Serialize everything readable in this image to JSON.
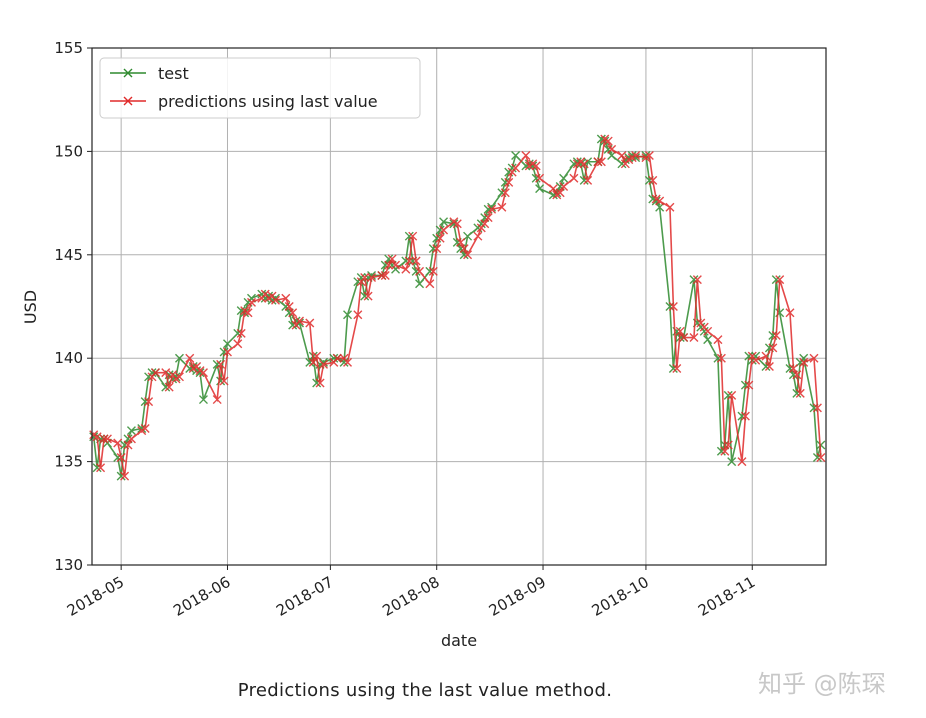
{
  "chart_data": {
    "type": "line",
    "title": "",
    "xlabel": "date",
    "ylabel": "USD",
    "ylim": [
      130,
      155
    ],
    "xlim": [
      "2018-04-23",
      "2018-11-22"
    ],
    "grid": true,
    "legend_position": "top-left",
    "yticks": [
      "130",
      "135",
      "140",
      "145",
      "150",
      "155"
    ],
    "xticks": [
      {
        "date": "2018-05-01",
        "label": "2018-05"
      },
      {
        "date": "2018-06-01",
        "label": "2018-06"
      },
      {
        "date": "2018-07-01",
        "label": "2018-07"
      },
      {
        "date": "2018-08-01",
        "label": "2018-08"
      },
      {
        "date": "2018-09-01",
        "label": "2018-09"
      },
      {
        "date": "2018-10-01",
        "label": "2018-10"
      },
      {
        "date": "2018-11-01",
        "label": "2018-11"
      }
    ],
    "x": [
      "2018-04-23",
      "2018-04-24",
      "2018-04-25",
      "2018-04-26",
      "2018-04-27",
      "2018-04-30",
      "2018-05-01",
      "2018-05-02",
      "2018-05-03",
      "2018-05-04",
      "2018-05-07",
      "2018-05-08",
      "2018-05-09",
      "2018-05-10",
      "2018-05-11",
      "2018-05-14",
      "2018-05-15",
      "2018-05-16",
      "2018-05-17",
      "2018-05-18",
      "2018-05-21",
      "2018-05-22",
      "2018-05-23",
      "2018-05-24",
      "2018-05-25",
      "2018-05-29",
      "2018-05-30",
      "2018-05-31",
      "2018-06-01",
      "2018-06-04",
      "2018-06-05",
      "2018-06-06",
      "2018-06-07",
      "2018-06-08",
      "2018-06-11",
      "2018-06-12",
      "2018-06-13",
      "2018-06-14",
      "2018-06-15",
      "2018-06-18",
      "2018-06-19",
      "2018-06-20",
      "2018-06-21",
      "2018-06-22",
      "2018-06-25",
      "2018-06-26",
      "2018-06-27",
      "2018-06-28",
      "2018-06-29",
      "2018-07-02",
      "2018-07-03",
      "2018-07-05",
      "2018-07-06",
      "2018-07-09",
      "2018-07-10",
      "2018-07-11",
      "2018-07-12",
      "2018-07-13",
      "2018-07-16",
      "2018-07-17",
      "2018-07-18",
      "2018-07-19",
      "2018-07-20",
      "2018-07-23",
      "2018-07-24",
      "2018-07-25",
      "2018-07-26",
      "2018-07-27",
      "2018-07-30",
      "2018-07-31",
      "2018-08-01",
      "2018-08-02",
      "2018-08-03",
      "2018-08-06",
      "2018-08-07",
      "2018-08-08",
      "2018-08-09",
      "2018-08-10",
      "2018-08-13",
      "2018-08-14",
      "2018-08-15",
      "2018-08-16",
      "2018-08-17",
      "2018-08-20",
      "2018-08-21",
      "2018-08-22",
      "2018-08-23",
      "2018-08-24",
      "2018-08-27",
      "2018-08-28",
      "2018-08-29",
      "2018-08-30",
      "2018-08-31",
      "2018-09-04",
      "2018-09-05",
      "2018-09-06",
      "2018-09-07",
      "2018-09-10",
      "2018-09-11",
      "2018-09-12",
      "2018-09-13",
      "2018-09-14",
      "2018-09-17",
      "2018-09-18",
      "2018-09-19",
      "2018-09-20",
      "2018-09-21",
      "2018-09-24",
      "2018-09-25",
      "2018-09-26",
      "2018-09-27",
      "2018-09-28",
      "2018-10-01",
      "2018-10-02",
      "2018-10-03",
      "2018-10-04",
      "2018-10-05",
      "2018-10-08",
      "2018-10-09",
      "2018-10-10",
      "2018-10-11",
      "2018-10-12",
      "2018-10-15",
      "2018-10-16",
      "2018-10-17",
      "2018-10-18",
      "2018-10-19",
      "2018-10-22",
      "2018-10-23",
      "2018-10-24",
      "2018-10-25",
      "2018-10-26",
      "2018-10-29",
      "2018-10-30",
      "2018-10-31",
      "2018-11-01",
      "2018-11-02",
      "2018-11-05",
      "2018-11-06",
      "2018-11-07",
      "2018-11-08",
      "2018-11-09",
      "2018-11-12",
      "2018-11-13",
      "2018-11-14",
      "2018-11-15",
      "2018-11-16",
      "2018-11-19",
      "2018-11-20",
      "2018-11-21"
    ],
    "series": [
      {
        "name": "test",
        "color": "#2f8a2f",
        "marker": "x",
        "values": [
          136.2,
          134.7,
          136.1,
          136.1,
          135.9,
          135.2,
          134.3,
          135.8,
          136.1,
          136.5,
          136.6,
          137.9,
          139.1,
          139.3,
          139.3,
          138.6,
          139.2,
          139.0,
          139.1,
          140.0,
          139.5,
          139.6,
          139.4,
          139.3,
          138.0,
          139.7,
          138.9,
          140.3,
          140.7,
          141.2,
          142.3,
          142.2,
          142.7,
          142.9,
          143.1,
          142.9,
          143.0,
          142.8,
          142.9,
          142.5,
          142.2,
          141.6,
          141.8,
          141.7,
          139.8,
          140.1,
          138.8,
          139.7,
          139.8,
          140.0,
          140.0,
          139.8,
          142.1,
          143.7,
          143.9,
          143.0,
          143.9,
          144.0,
          144.0,
          144.5,
          144.8,
          144.5,
          144.3,
          144.7,
          145.9,
          144.7,
          144.2,
          143.6,
          144.2,
          145.3,
          145.8,
          146.2,
          146.6,
          146.5,
          145.6,
          145.3,
          145.0,
          145.9,
          146.3,
          146.5,
          146.8,
          147.2,
          147.3,
          148.0,
          148.5,
          149.0,
          149.2,
          149.8,
          149.3,
          149.4,
          149.3,
          148.7,
          148.2,
          147.9,
          148.0,
          148.3,
          148.7,
          149.4,
          149.5,
          149.4,
          148.6,
          149.5,
          149.5,
          150.6,
          150.5,
          150.1,
          149.8,
          149.4,
          149.6,
          149.7,
          149.8,
          149.7,
          149.8,
          148.6,
          147.7,
          147.6,
          147.3,
          142.5,
          139.5,
          141.3,
          141.0,
          141.0,
          143.8,
          141.7,
          141.5,
          141.3,
          140.9,
          140.0,
          135.5,
          135.8,
          138.2,
          135.0,
          137.2,
          138.7,
          140.1,
          139.9,
          140.1,
          139.6,
          140.5,
          141.1,
          143.8,
          142.2,
          139.5,
          139.2,
          138.3,
          139.8,
          140.0,
          137.6,
          135.2,
          135.8
        ]
      },
      {
        "name": "predictions using last value",
        "color": "#e02a2a",
        "marker": "x",
        "values": [
          136.3,
          136.2,
          134.7,
          136.1,
          136.1,
          135.9,
          135.2,
          134.3,
          135.8,
          136.1,
          136.5,
          136.6,
          137.9,
          139.1,
          139.3,
          139.3,
          138.6,
          139.2,
          139.0,
          139.1,
          140.0,
          139.5,
          139.6,
          139.4,
          139.3,
          138.0,
          139.7,
          138.9,
          140.3,
          140.7,
          141.2,
          142.3,
          142.2,
          142.7,
          142.9,
          143.1,
          142.9,
          143.0,
          142.8,
          142.9,
          142.5,
          142.2,
          141.6,
          141.8,
          141.7,
          139.8,
          140.1,
          138.8,
          139.7,
          139.8,
          140.0,
          140.0,
          139.8,
          142.1,
          143.7,
          143.9,
          143.0,
          143.9,
          144.0,
          144.0,
          144.5,
          144.8,
          144.5,
          144.3,
          144.7,
          145.9,
          144.7,
          144.2,
          143.6,
          144.2,
          145.3,
          145.8,
          146.2,
          146.6,
          146.5,
          145.6,
          145.3,
          145.0,
          145.9,
          146.3,
          146.5,
          146.8,
          147.2,
          147.3,
          148.0,
          148.5,
          149.0,
          149.2,
          149.8,
          149.3,
          149.4,
          149.3,
          148.7,
          148.2,
          147.9,
          148.0,
          148.3,
          148.7,
          149.4,
          149.5,
          149.4,
          148.6,
          149.5,
          149.5,
          150.6,
          150.5,
          150.1,
          149.8,
          149.4,
          149.6,
          149.7,
          149.8,
          149.7,
          149.8,
          148.6,
          147.7,
          147.6,
          147.3,
          142.5,
          139.5,
          141.3,
          141.0,
          141.0,
          143.8,
          141.7,
          141.5,
          141.3,
          140.9,
          140.0,
          135.5,
          135.8,
          138.2,
          135.0,
          137.2,
          138.7,
          140.1,
          139.9,
          140.1,
          139.6,
          140.5,
          141.1,
          143.8,
          142.2,
          139.5,
          139.2,
          138.3,
          139.8,
          140.0,
          137.6,
          135.2
        ]
      }
    ]
  },
  "caption": "Predictions using the last value method.",
  "watermark": "知乎 @陈琛"
}
